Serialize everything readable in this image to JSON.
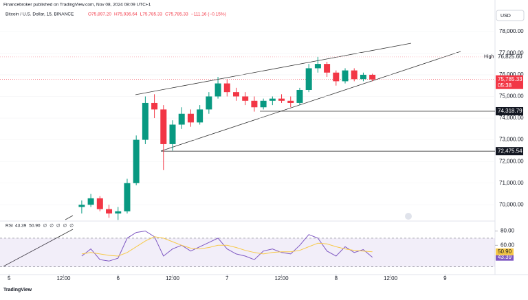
{
  "header": {
    "publisher": "Financebroker published on TradingView.com, Nov 08, 2024 08:09 UTC+1",
    "symbol": "Bitcoin / U.S. Dollar, 15, BINANCE",
    "ohlc_legend": [
      "O75,897.20",
      "H75,936.64",
      "L75,785.33",
      "C75,785.33",
      "−111.16 (−0.15%)"
    ],
    "currency": "USD",
    "logo": "TradingView"
  },
  "chart_data": {
    "type": "candlestick",
    "x": [
      16,
      18,
      20,
      22,
      24,
      26,
      28,
      30,
      32,
      34,
      36,
      38,
      40,
      42,
      44,
      46,
      48,
      50,
      52,
      54,
      56,
      58,
      60,
      62,
      64,
      66,
      68,
      70,
      72,
      74,
      76,
      78,
      80
    ],
    "open": [
      69900,
      70000,
      70300,
      69800,
      69600,
      69700,
      71000,
      73000,
      74700,
      74400,
      72800,
      73700,
      74200,
      73800,
      74400,
      75000,
      75600,
      75200,
      75000,
      74800,
      74500,
      74800,
      74900,
      74800,
      74700,
      75300,
      76300,
      76500,
      76100,
      75700,
      76200,
      75800,
      76000
    ],
    "high": [
      70200,
      70500,
      70400,
      70000,
      69900,
      71200,
      73200,
      75000,
      75100,
      74600,
      73900,
      74500,
      74400,
      74600,
      75200,
      75900,
      75800,
      75400,
      75200,
      75000,
      74900,
      75000,
      75100,
      75000,
      75400,
      76500,
      76826,
      76600,
      76200,
      76300,
      76300,
      76100,
      76050
    ],
    "low": [
      69600,
      69900,
      69700,
      69400,
      69300,
      69600,
      70900,
      72800,
      74000,
      71600,
      72500,
      73500,
      73600,
      73700,
      74200,
      74900,
      75000,
      74800,
      74600,
      74300,
      74400,
      74600,
      74700,
      74500,
      74600,
      75200,
      76100,
      75900,
      75500,
      75600,
      75700,
      75700,
      75700
    ],
    "close": [
      70000,
      70300,
      69800,
      69600,
      69700,
      71000,
      73000,
      74700,
      74400,
      72800,
      73700,
      74200,
      73800,
      74400,
      75000,
      75600,
      75200,
      75000,
      74800,
      74500,
      74800,
      74900,
      74800,
      74700,
      75300,
      76300,
      76500,
      76100,
      75700,
      76200,
      75800,
      76000,
      75785.33
    ],
    "up_color": "#089981",
    "down_color": "#f23645",
    "xlim": [
      -2,
      107
    ],
    "xticks": [
      {
        "value": 0,
        "label": "5"
      },
      {
        "value": 12,
        "label": "12:00"
      },
      {
        "value": 24,
        "label": "6"
      },
      {
        "value": 36,
        "label": "12:00"
      },
      {
        "value": 48,
        "label": "7"
      },
      {
        "value": 60,
        "label": "12:00"
      },
      {
        "value": 72,
        "label": "8"
      },
      {
        "value": 84,
        "label": "12:00"
      },
      {
        "value": 96,
        "label": "9"
      }
    ],
    "ylim": [
      69250,
      79450
    ],
    "yticks": [
      {
        "value": 70000,
        "label": "70,000.00"
      },
      {
        "value": 71000,
        "label": "71,000.00"
      },
      {
        "value": 72000,
        "label": "72,000.00"
      },
      {
        "value": 73000,
        "label": "73,000.00"
      },
      {
        "value": 74000,
        "label": "74,000.00"
      },
      {
        "value": 75000,
        "label": "75,000.00"
      },
      {
        "value": 76000,
        "label": "76,000.00"
      },
      {
        "value": 77000,
        "label": "77,000.00"
      },
      {
        "value": 78000,
        "label": "78,000.00"
      }
    ],
    "high_marker": {
      "text": "High",
      "value": 76825.6,
      "label": "76,825.60"
    },
    "last_price": {
      "value": 75785.33,
      "label": "75,785.33",
      "countdown": "05:38"
    },
    "levels": [
      {
        "value": 74318.79,
        "label": "74,318.79"
      },
      {
        "value": 72475.54,
        "label": "72,475.54"
      }
    ],
    "rsi": {
      "title": "RSI",
      "legend": [
        "43.39",
        "50.90",
        "∅",
        "∅",
        "∅",
        "∅",
        "∅"
      ],
      "ylim": [
        22,
        91
      ],
      "yticks": [
        {
          "value": 80,
          "label": "80.00"
        },
        {
          "value": 60,
          "label": "60.00"
        }
      ],
      "bands": [
        70,
        30
      ],
      "series": [
        {
          "name": "RSI",
          "color": "#7e57c2",
          "values": [
            45,
            55,
            40,
            38,
            42,
            70,
            78,
            80,
            72,
            45,
            55,
            60,
            52,
            58,
            64,
            70,
            55,
            48,
            45,
            40,
            52,
            55,
            50,
            48,
            60,
            75,
            70,
            52,
            45,
            58,
            50,
            54,
            43.39
          ],
          "last_label": "43.39"
        },
        {
          "name": "RSI-based MA",
          "color": "#f7c948",
          "values": [
            48,
            50,
            48,
            46,
            45,
            50,
            58,
            66,
            72,
            70,
            65,
            60,
            56,
            55,
            57,
            60,
            60,
            57,
            53,
            50,
            48,
            50,
            51,
            51,
            53,
            58,
            63,
            62,
            58,
            55,
            53,
            52,
            50.9
          ],
          "last_label": "50.90"
        }
      ]
    }
  }
}
